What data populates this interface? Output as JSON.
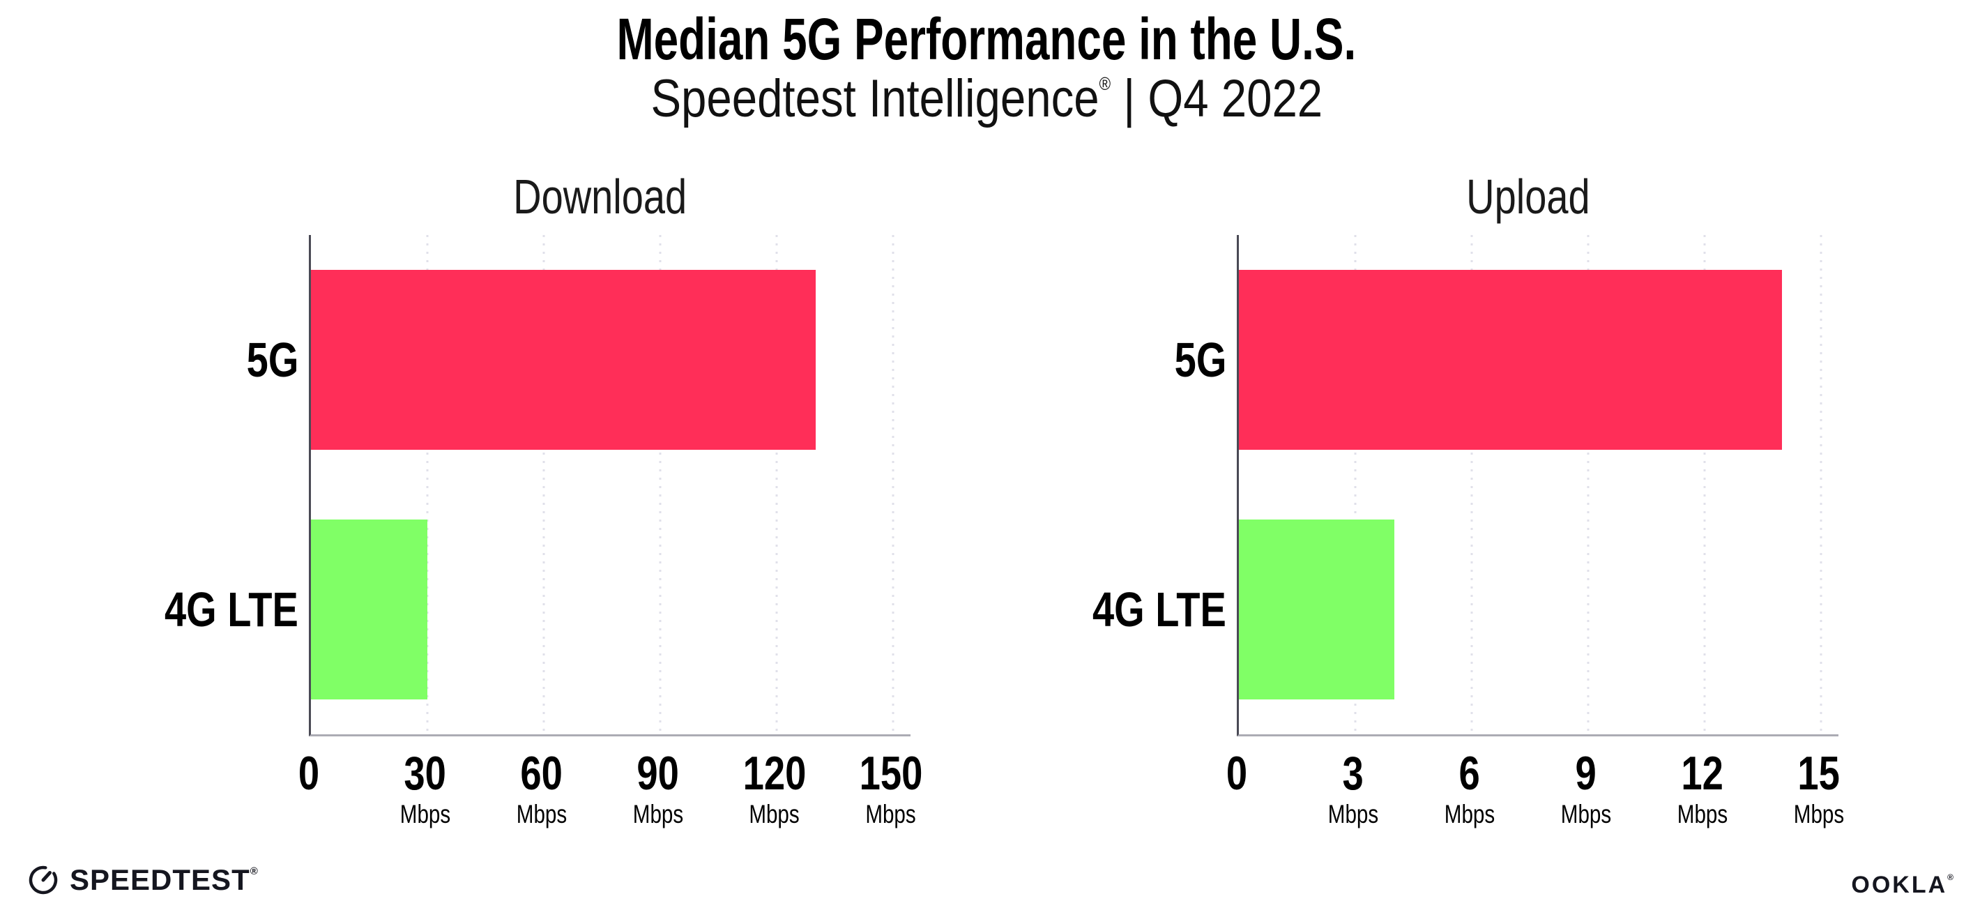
{
  "header": {
    "title": "Median 5G Performance in the U.S.",
    "subtitle": {
      "brand": "Speedtest Intelligence",
      "registered": "®",
      "rest": " | Q4 2022"
    }
  },
  "footer": {
    "gauge_icon": "speedtest-gauge-icon",
    "speedtest_wordmark": "SPEEDTEST",
    "speedtest_registered": "®",
    "ookla_wordmark": "OOKLA",
    "ookla_registered": "®"
  },
  "colors": {
    "bar_5g": "#FF2E58",
    "bar_4g_lte": "#80FF66",
    "gridline": "#E0E0EA",
    "axis_left": "#4A4A55",
    "axis_bottom": "#ABABB4",
    "text": "#000000"
  },
  "chart_data": [
    {
      "type": "bar",
      "orientation": "horizontal",
      "title": "Download",
      "categories": [
        "5G",
        "4G LTE"
      ],
      "values": [
        130,
        30
      ],
      "unit": "Mbps",
      "xlim": [
        0,
        150
      ],
      "ticks": [
        {
          "value": 0,
          "unit": ""
        },
        {
          "value": 30,
          "unit": "Mbps"
        },
        {
          "value": 60,
          "unit": "Mbps"
        },
        {
          "value": 90,
          "unit": "Mbps"
        },
        {
          "value": 120,
          "unit": "Mbps"
        },
        {
          "value": 150,
          "unit": "Mbps"
        }
      ],
      "bar_colors": [
        "#FF2E58",
        "#80FF66"
      ],
      "grid": "dotted-vertical",
      "legend": "none"
    },
    {
      "type": "bar",
      "orientation": "horizontal",
      "title": "Upload",
      "categories": [
        "5G",
        "4G LTE"
      ],
      "values": [
        14,
        4
      ],
      "unit": "Mbps",
      "xlim": [
        0,
        15
      ],
      "ticks": [
        {
          "value": 0,
          "unit": ""
        },
        {
          "value": 3,
          "unit": "Mbps"
        },
        {
          "value": 6,
          "unit": "Mbps"
        },
        {
          "value": 9,
          "unit": "Mbps"
        },
        {
          "value": 12,
          "unit": "Mbps"
        },
        {
          "value": 15,
          "unit": "Mbps"
        }
      ],
      "bar_colors": [
        "#FF2E58",
        "#80FF66"
      ],
      "grid": "dotted-vertical",
      "legend": "none"
    }
  ]
}
